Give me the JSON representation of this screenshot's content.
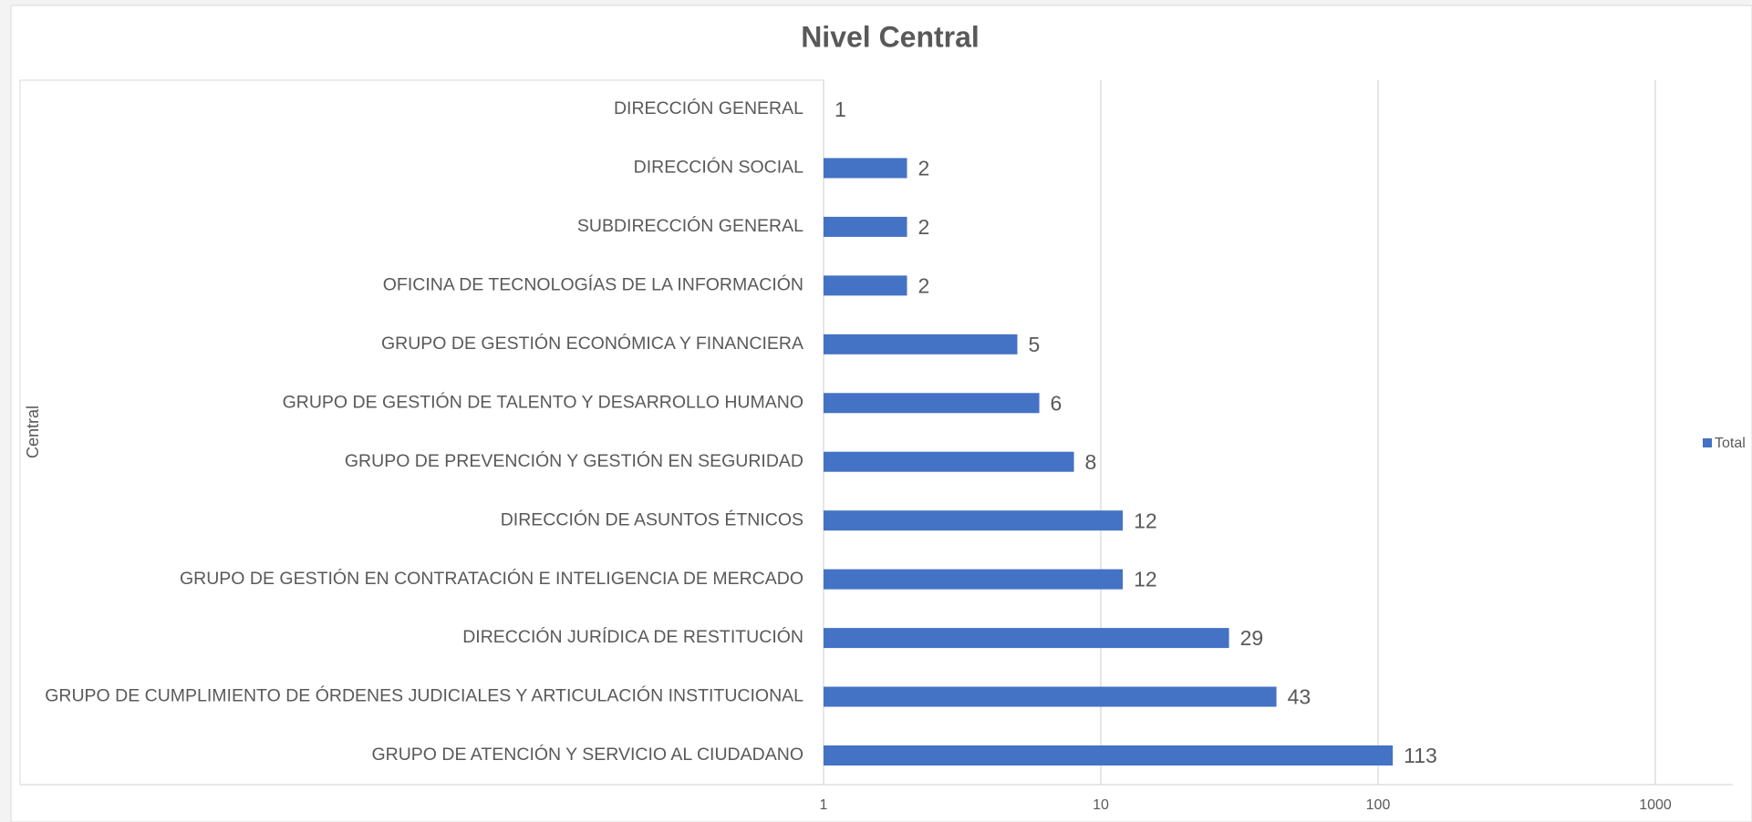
{
  "chart_data": {
    "type": "bar",
    "orientation": "horizontal",
    "title": "Nivel Central",
    "y_axis_label": "Central",
    "categories": [
      "DIRECCIÓN GENERAL",
      "DIRECCIÓN SOCIAL",
      "SUBDIRECCIÓN GENERAL",
      "OFICINA DE TECNOLOGÍAS DE LA INFORMACIÓN",
      "GRUPO DE GESTIÓN ECONÓMICA Y FINANCIERA",
      "GRUPO DE GESTIÓN DE TALENTO Y DESARROLLO HUMANO",
      "GRUPO DE PREVENCIÓN Y GESTIÓN EN SEGURIDAD",
      "DIRECCIÓN DE ASUNTOS ÉTNICOS",
      "GRUPO DE GESTIÓN EN CONTRATACIÓN E INTELIGENCIA DE MERCADO",
      "DIRECCIÓN JURÍDICA DE RESTITUCIÓN",
      "GRUPO DE CUMPLIMIENTO DE ÓRDENES JUDICIALES Y ARTICULACIÓN INSTITUCIONAL",
      "GRUPO DE ATENCIÓN Y SERVICIO AL CIUDADANO"
    ],
    "series": [
      {
        "name": "Total",
        "color": "#4472c4",
        "values": [
          1,
          2,
          2,
          2,
          5,
          6,
          8,
          12,
          12,
          29,
          43,
          113
        ]
      }
    ],
    "xlim": [
      1,
      1000
    ],
    "xticks": [
      1,
      10,
      100,
      1000
    ],
    "x_log_scale": true,
    "grid": true,
    "legend": "right"
  }
}
